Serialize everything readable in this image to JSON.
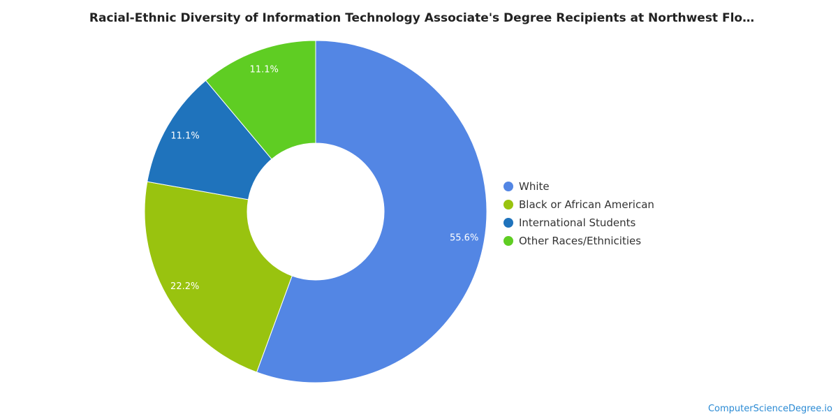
{
  "chart_data": {
    "type": "pie",
    "title": "Racial-Ethnic Diversity of Information Technology Associate's Degree Recipients at Northwest Flo…",
    "categories": [
      "White",
      "Black or African American",
      "International Students",
      "Other Races/Ethnicities"
    ],
    "values": [
      55.6,
      22.2,
      11.1,
      11.1
    ],
    "value_labels": [
      "55.6%",
      "22.2%",
      "11.1%",
      "11.1%"
    ],
    "colors": [
      "#5386e4",
      "#99c30f",
      "#1f73bc",
      "#5fcd23"
    ],
    "donut": true,
    "legend_position": "right"
  },
  "watermark": "ComputerScienceDegree.io"
}
